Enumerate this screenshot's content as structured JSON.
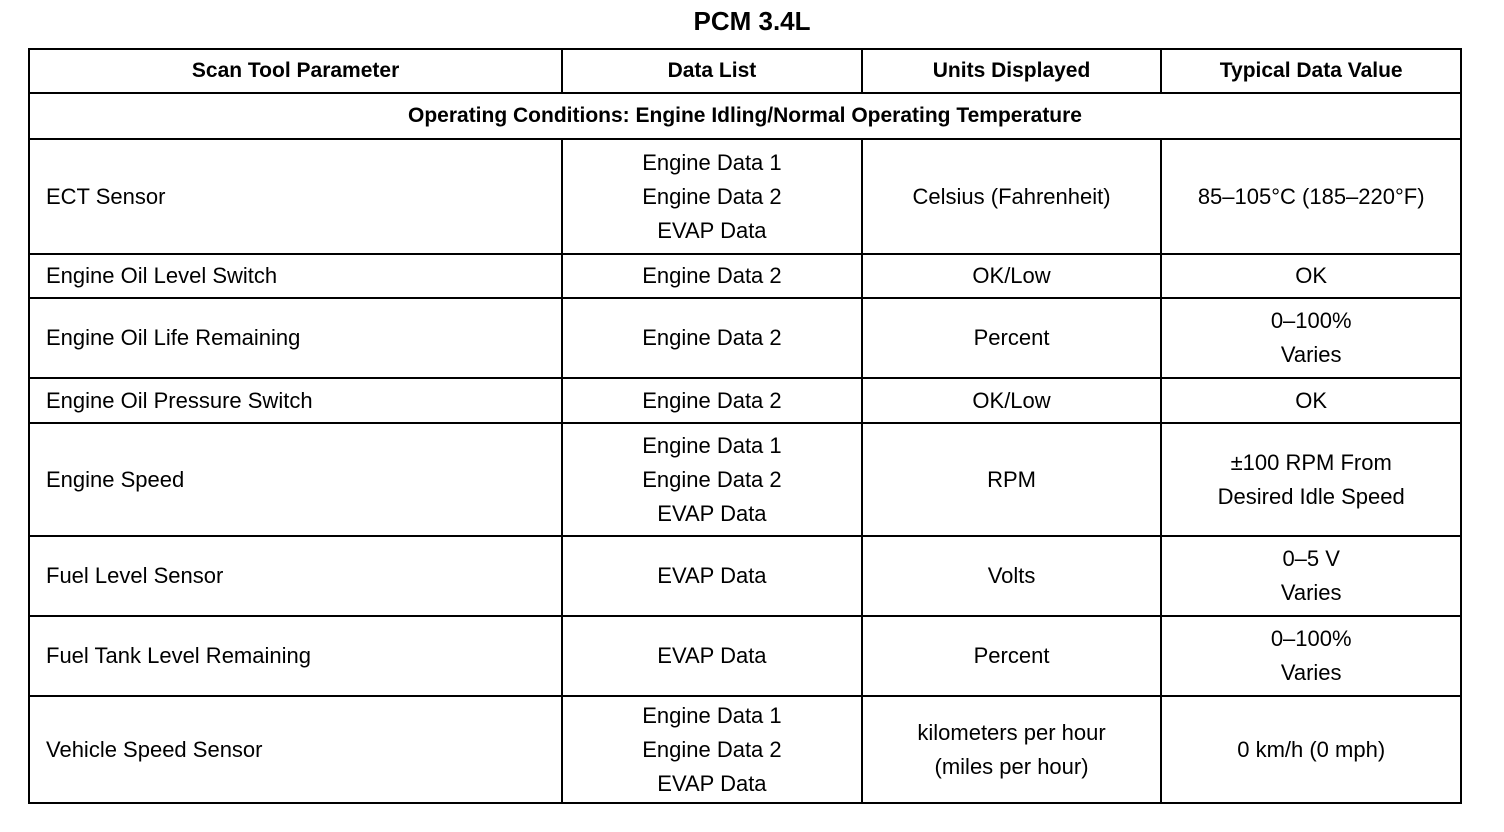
{
  "title": "PCM 3.4L",
  "columns": [
    "Scan Tool Parameter",
    "Data List",
    "Units Displayed",
    "Typical Data Value"
  ],
  "section": "Operating Conditions: Engine Idling/Normal Operating Temperature",
  "rows": [
    {
      "parameter": "ECT Sensor",
      "data_list": [
        "Engine Data 1",
        "Engine Data 2",
        "EVAP Data"
      ],
      "units": [
        "Celsius (Fahrenheit)"
      ],
      "typical": [
        "85–105°C (185–220°F)"
      ]
    },
    {
      "parameter": "Engine Oil Level Switch",
      "data_list": [
        "Engine Data 2"
      ],
      "units": [
        "OK/Low"
      ],
      "typical": [
        "OK"
      ]
    },
    {
      "parameter": "Engine Oil Life Remaining",
      "data_list": [
        "Engine Data 2"
      ],
      "units": [
        "Percent"
      ],
      "typical": [
        "0–100%",
        "Varies"
      ]
    },
    {
      "parameter": "Engine Oil Pressure Switch",
      "data_list": [
        "Engine Data 2"
      ],
      "units": [
        "OK/Low"
      ],
      "typical": [
        "OK"
      ]
    },
    {
      "parameter": "Engine Speed",
      "data_list": [
        "Engine Data 1",
        "Engine Data 2",
        "EVAP Data"
      ],
      "units": [
        "RPM"
      ],
      "typical": [
        "±100 RPM From",
        "Desired Idle Speed"
      ]
    },
    {
      "parameter": "Fuel Level Sensor",
      "data_list": [
        "EVAP Data"
      ],
      "units": [
        "Volts"
      ],
      "typical": [
        "0–5 V",
        "Varies"
      ]
    },
    {
      "parameter": "Fuel Tank Level Remaining",
      "data_list": [
        "EVAP Data"
      ],
      "units": [
        "Percent"
      ],
      "typical": [
        "0–100%",
        "Varies"
      ]
    },
    {
      "parameter": "Vehicle Speed Sensor",
      "data_list": [
        "Engine Data 1",
        "Engine Data 2",
        "EVAP Data"
      ],
      "units": [
        "kilometers per hour",
        "(miles per hour)"
      ],
      "typical": [
        "0 km/h (0 mph)"
      ]
    }
  ]
}
